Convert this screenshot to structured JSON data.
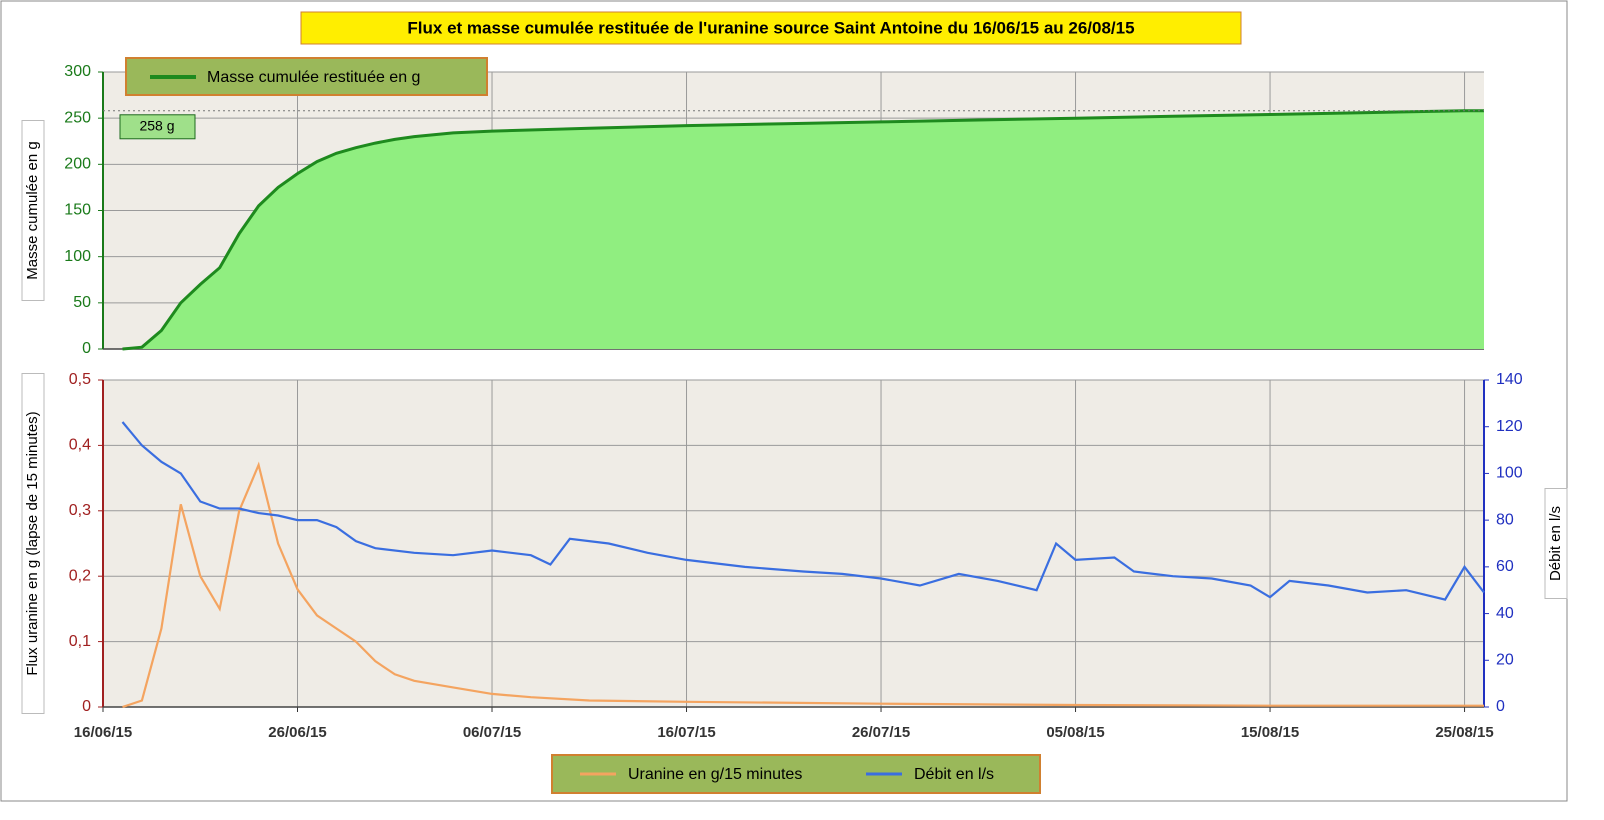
{
  "title": "Flux et masse cumulée restituée de l'uranine source Saint Antoine du 16/06/15 au 26/08/15",
  "chart_data": [
    {
      "type": "area",
      "y_label": "Masse cumulée en g",
      "legend": "top-left",
      "grid": true,
      "xlim": [
        "2015-06-16",
        "2015-08-26"
      ],
      "ylim": [
        0,
        300
      ],
      "yticks": [
        0,
        50,
        100,
        150,
        200,
        250,
        300
      ],
      "series": [
        {
          "name": "Masse cumulée restituée en g",
          "color": "#1e8a1e",
          "fill": "#90ee80",
          "x": [
            "2015-06-17",
            "2015-06-18",
            "2015-06-19",
            "2015-06-20",
            "2015-06-21",
            "2015-06-22",
            "2015-06-23",
            "2015-06-24",
            "2015-06-25",
            "2015-06-26",
            "2015-06-27",
            "2015-06-28",
            "2015-06-29",
            "2015-06-30",
            "2015-07-01",
            "2015-07-02",
            "2015-07-03",
            "2015-07-04",
            "2015-07-05",
            "2015-07-06",
            "2015-07-11",
            "2015-07-16",
            "2015-07-21",
            "2015-07-26",
            "2015-07-31",
            "2015-08-05",
            "2015-08-10",
            "2015-08-15",
            "2015-08-20",
            "2015-08-25",
            "2015-08-26"
          ],
          "values": [
            0,
            2,
            20,
            50,
            70,
            88,
            125,
            155,
            175,
            190,
            203,
            212,
            218,
            223,
            227,
            230,
            232,
            234,
            235,
            236,
            239,
            242,
            244,
            246,
            248,
            250,
            252,
            254,
            256,
            258,
            258
          ]
        }
      ],
      "annotations": [
        {
          "label": "258 g",
          "value": 258
        }
      ]
    },
    {
      "type": "line",
      "y_label": "Flux uranine en g (lapse de 15 minutes)",
      "y2_label": "Débit en l/s",
      "legend": "bottom",
      "grid": true,
      "xlim": [
        "2015-06-16",
        "2015-08-26"
      ],
      "xticks": [
        {
          "value": "2015-06-16",
          "label": "16/06/15"
        },
        {
          "value": "2015-06-26",
          "label": "26/06/15"
        },
        {
          "value": "2015-07-06",
          "label": "06/07/15"
        },
        {
          "value": "2015-07-16",
          "label": "16/07/15"
        },
        {
          "value": "2015-07-26",
          "label": "26/07/15"
        },
        {
          "value": "2015-08-05",
          "label": "05/08/15"
        },
        {
          "value": "2015-08-15",
          "label": "15/08/15"
        },
        {
          "value": "2015-08-25",
          "label": "25/08/15"
        }
      ],
      "ylim": [
        0,
        0.5
      ],
      "yticks": [
        0,
        {
          "value": 0.1,
          "label": "0,1"
        },
        {
          "value": 0.2,
          "label": "0,2"
        },
        {
          "value": 0.3,
          "label": "0,3"
        },
        {
          "value": 0.4,
          "label": "0,4"
        },
        {
          "value": 0.5,
          "label": "0,5"
        }
      ],
      "y2lim": [
        0,
        140
      ],
      "y2ticks": [
        0,
        20,
        40,
        60,
        80,
        100,
        120,
        140
      ],
      "series": [
        {
          "name": "Uranine en g/15 minutes",
          "color": "#f4a460",
          "axis": "y",
          "x": [
            "2015-06-17",
            "2015-06-18",
            "2015-06-19",
            "2015-06-20",
            "2015-06-21",
            "2015-06-22",
            "2015-06-23",
            "2015-06-24",
            "2015-06-25",
            "2015-06-26",
            "2015-06-27",
            "2015-06-28",
            "2015-06-29",
            "2015-06-30",
            "2015-07-01",
            "2015-07-02",
            "2015-07-04",
            "2015-07-06",
            "2015-07-08",
            "2015-07-11",
            "2015-07-16",
            "2015-07-26",
            "2015-08-05",
            "2015-08-15",
            "2015-08-26"
          ],
          "values": [
            0,
            0.01,
            0.12,
            0.31,
            0.2,
            0.15,
            0.3,
            0.37,
            0.25,
            0.18,
            0.14,
            0.12,
            0.1,
            0.07,
            0.05,
            0.04,
            0.03,
            0.02,
            0.015,
            0.01,
            0.008,
            0.005,
            0.003,
            0.002,
            0.002
          ]
        },
        {
          "name": "Débit en l/s",
          "color": "#3a6ee0",
          "axis": "y2",
          "x": [
            "2015-06-17",
            "2015-06-18",
            "2015-06-19",
            "2015-06-20",
            "2015-06-21",
            "2015-06-22",
            "2015-06-23",
            "2015-06-24",
            "2015-06-25",
            "2015-06-26",
            "2015-06-27",
            "2015-06-28",
            "2015-06-29",
            "2015-06-30",
            "2015-07-02",
            "2015-07-04",
            "2015-07-06",
            "2015-07-08",
            "2015-07-09",
            "2015-07-10",
            "2015-07-12",
            "2015-07-14",
            "2015-07-16",
            "2015-07-19",
            "2015-07-22",
            "2015-07-24",
            "2015-07-26",
            "2015-07-28",
            "2015-07-30",
            "2015-08-01",
            "2015-08-03",
            "2015-08-04",
            "2015-08-05",
            "2015-08-07",
            "2015-08-08",
            "2015-08-10",
            "2015-08-12",
            "2015-08-14",
            "2015-08-15",
            "2015-08-16",
            "2015-08-18",
            "2015-08-20",
            "2015-08-22",
            "2015-08-24",
            "2015-08-25",
            "2015-08-26"
          ],
          "values": [
            122,
            112,
            105,
            100,
            88,
            85,
            85,
            83,
            82,
            80,
            80,
            77,
            71,
            68,
            66,
            65,
            67,
            65,
            61,
            72,
            70,
            66,
            63,
            60,
            58,
            57,
            55,
            52,
            57,
            54,
            50,
            70,
            63,
            64,
            58,
            56,
            55,
            52,
            47,
            54,
            52,
            49,
            50,
            46,
            60,
            49
          ]
        }
      ]
    }
  ]
}
